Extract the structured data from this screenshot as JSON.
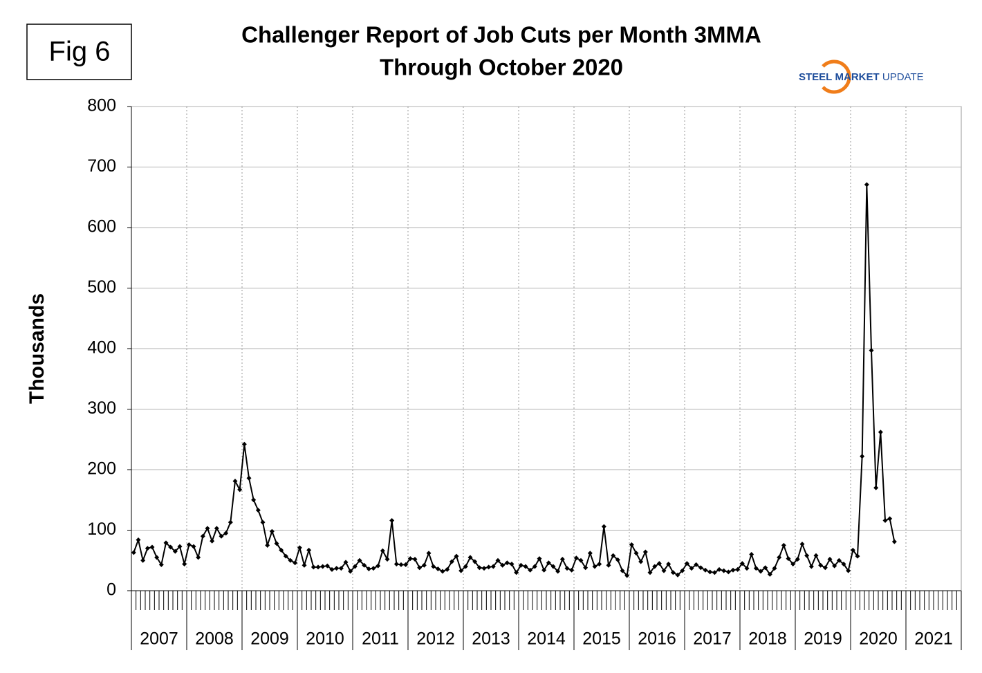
{
  "chart_data": {
    "type": "line",
    "fig_label": "Fig 6",
    "title": [
      "Challenger Report of Job Cuts per Month 3MMA",
      "Through October 2020"
    ],
    "logo": [
      "STEEL",
      "MARKET",
      "UPDATE"
    ],
    "y_label": "Thousands",
    "categories": [
      "2007",
      "2008",
      "2009",
      "2010",
      "2011",
      "2012",
      "2013",
      "2014",
      "2015",
      "2016",
      "2017",
      "2018",
      "2019",
      "2020",
      "2021"
    ],
    "series": [
      {
        "name": "Job Cuts 3MMA",
        "color": "#000000",
        "values": [
          [
            63,
            84,
            50,
            70,
            72,
            55,
            43,
            79,
            72,
            65,
            73,
            44
          ],
          [
            76,
            73,
            55,
            90,
            103,
            82,
            103,
            90,
            95,
            113,
            181,
            167
          ],
          [
            242,
            186,
            150,
            133,
            113,
            75,
            98,
            78,
            67,
            57,
            50,
            46
          ],
          [
            71,
            42,
            67,
            39,
            39,
            40,
            41,
            35,
            37,
            37,
            47,
            32
          ],
          [
            40,
            50,
            42,
            36,
            37,
            41,
            66,
            52,
            116,
            44,
            43,
            43
          ],
          [
            53,
            52,
            38,
            42,
            62,
            40,
            36,
            32,
            35,
            48,
            57,
            33
          ],
          [
            40,
            55,
            48,
            38,
            37,
            39,
            40,
            50,
            42,
            46,
            44,
            30
          ],
          [
            42,
            40,
            34,
            40,
            53,
            34,
            46,
            40,
            32,
            52,
            37,
            34
          ],
          [
            54,
            50,
            38,
            62,
            40,
            44,
            106,
            42,
            58,
            51,
            33,
            25
          ],
          [
            76,
            62,
            48,
            64,
            30,
            40,
            45,
            33,
            44,
            30,
            26,
            33
          ],
          [
            45,
            37,
            43,
            38,
            34,
            31,
            30,
            35,
            33,
            31,
            34,
            35
          ],
          [
            45,
            37,
            60,
            37,
            32,
            38,
            27,
            37,
            55,
            75,
            53,
            44
          ],
          [
            52,
            77,
            58,
            40,
            58,
            42,
            38,
            52,
            41,
            50,
            44,
            33
          ],
          [
            67,
            57,
            222,
            671,
            397,
            170,
            262,
            116,
            119,
            81
          ],
          []
        ]
      }
    ],
    "ylim": [
      0,
      800
    ],
    "yticks": [
      0,
      100,
      200,
      300,
      400,
      500,
      600,
      700,
      800
    ],
    "grid": true
  }
}
